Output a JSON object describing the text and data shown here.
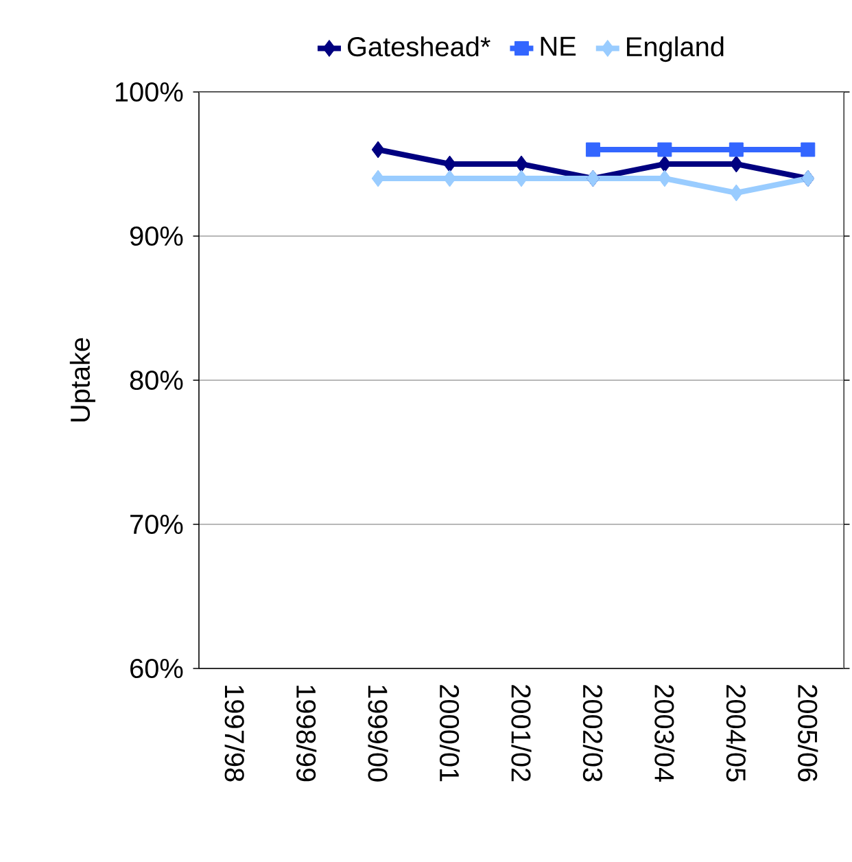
{
  "chart_data": {
    "type": "line",
    "ylabel": "Uptake",
    "categories": [
      "1997/98",
      "1998/99",
      "1999/00",
      "2000/01",
      "2001/02",
      "2002/03",
      "2003/04",
      "2004/05",
      "2005/06"
    ],
    "series": [
      {
        "name": "Gateshead*",
        "color": "#000080",
        "marker": "diamond",
        "values": [
          null,
          null,
          96,
          95,
          95,
          94,
          95,
          95,
          94
        ]
      },
      {
        "name": "NE",
        "color": "#3366ff",
        "marker": "square",
        "values": [
          null,
          null,
          null,
          null,
          null,
          96,
          96,
          96,
          96
        ]
      },
      {
        "name": "England",
        "color": "#99ccff",
        "marker": "diamond",
        "values": [
          null,
          null,
          94,
          94,
          94,
          94,
          94,
          93,
          94
        ]
      }
    ],
    "ylim": [
      60,
      100
    ],
    "yticks": [
      {
        "value": 60,
        "label": "60%"
      },
      {
        "value": 70,
        "label": "70%"
      },
      {
        "value": 80,
        "label": "80%"
      },
      {
        "value": 90,
        "label": "90%"
      },
      {
        "value": 100,
        "label": "100%"
      }
    ],
    "grid": "y",
    "legend": "top"
  }
}
